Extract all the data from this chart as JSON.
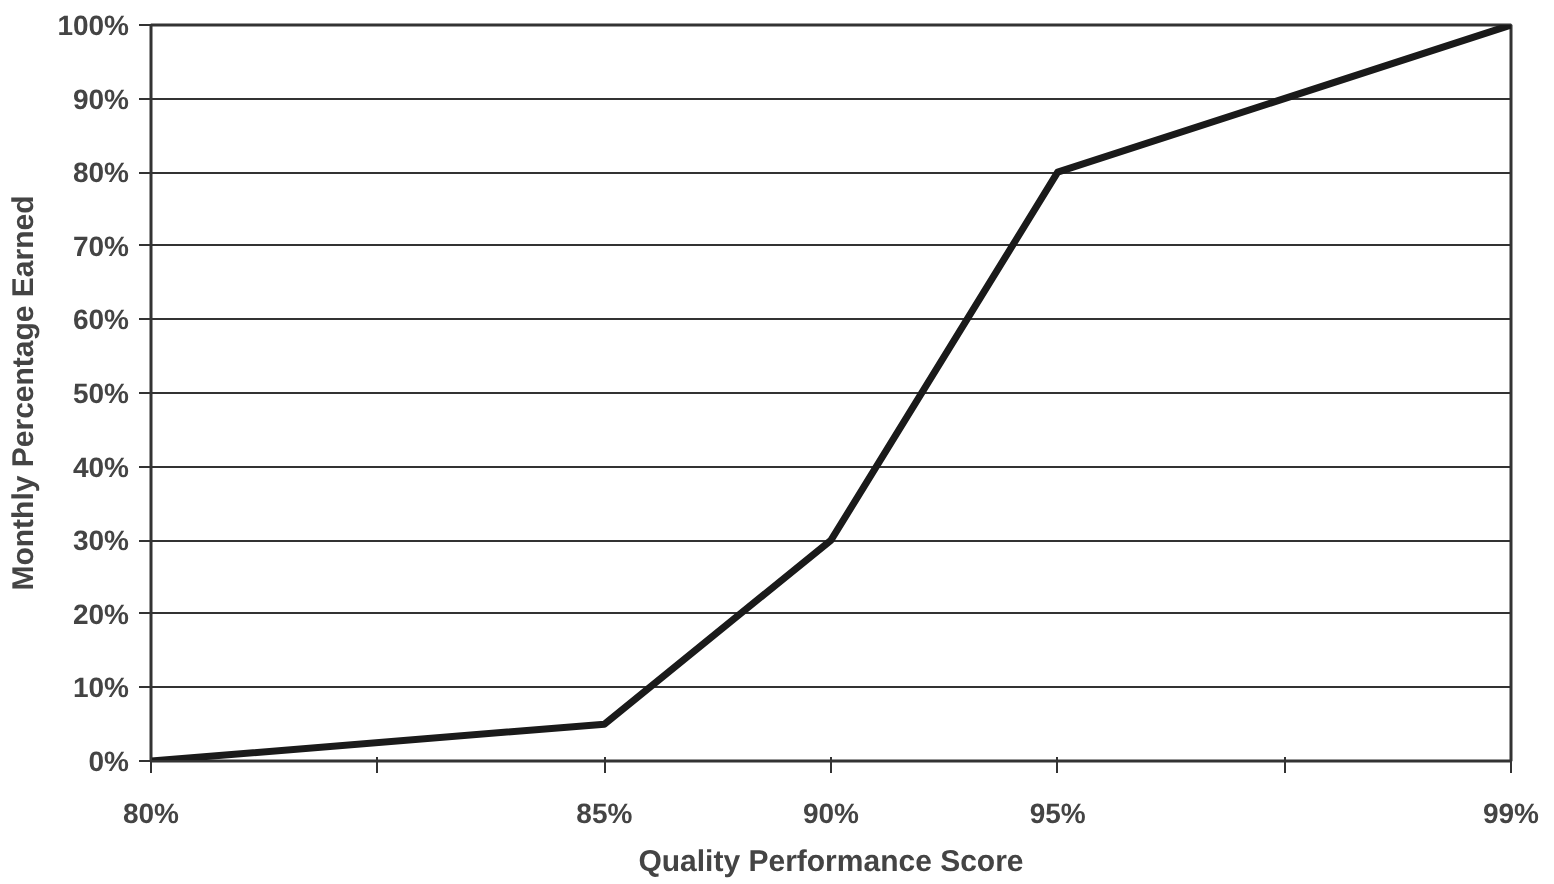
{
  "chart_data": {
    "type": "line",
    "xlabel": "Quality Performance Score",
    "ylabel": "Monthly Percentage Earned",
    "categories": [
      "80%",
      null,
      "85%",
      "90%",
      "95%",
      null,
      "99%"
    ],
    "series": [
      {
        "color": "#1a1a1a",
        "values": [
          0,
          null,
          5,
          30,
          80,
          null,
          100
        ]
      }
    ],
    "ylim": [
      0,
      100
    ],
    "yticks": [
      {
        "value": 0,
        "label": "0%"
      },
      {
        "value": 10,
        "label": "10%"
      },
      {
        "value": 20,
        "label": "20%"
      },
      {
        "value": 30,
        "label": "30%"
      },
      {
        "value": 40,
        "label": "40%"
      },
      {
        "value": 50,
        "label": "50%"
      },
      {
        "value": 60,
        "label": "60%"
      },
      {
        "value": 70,
        "label": "70%"
      },
      {
        "value": 80,
        "label": "80%"
      },
      {
        "value": 90,
        "label": "90%"
      },
      {
        "value": 100,
        "label": "100%"
      }
    ],
    "grid": "y",
    "marker": "none",
    "line_style": "solid"
  }
}
